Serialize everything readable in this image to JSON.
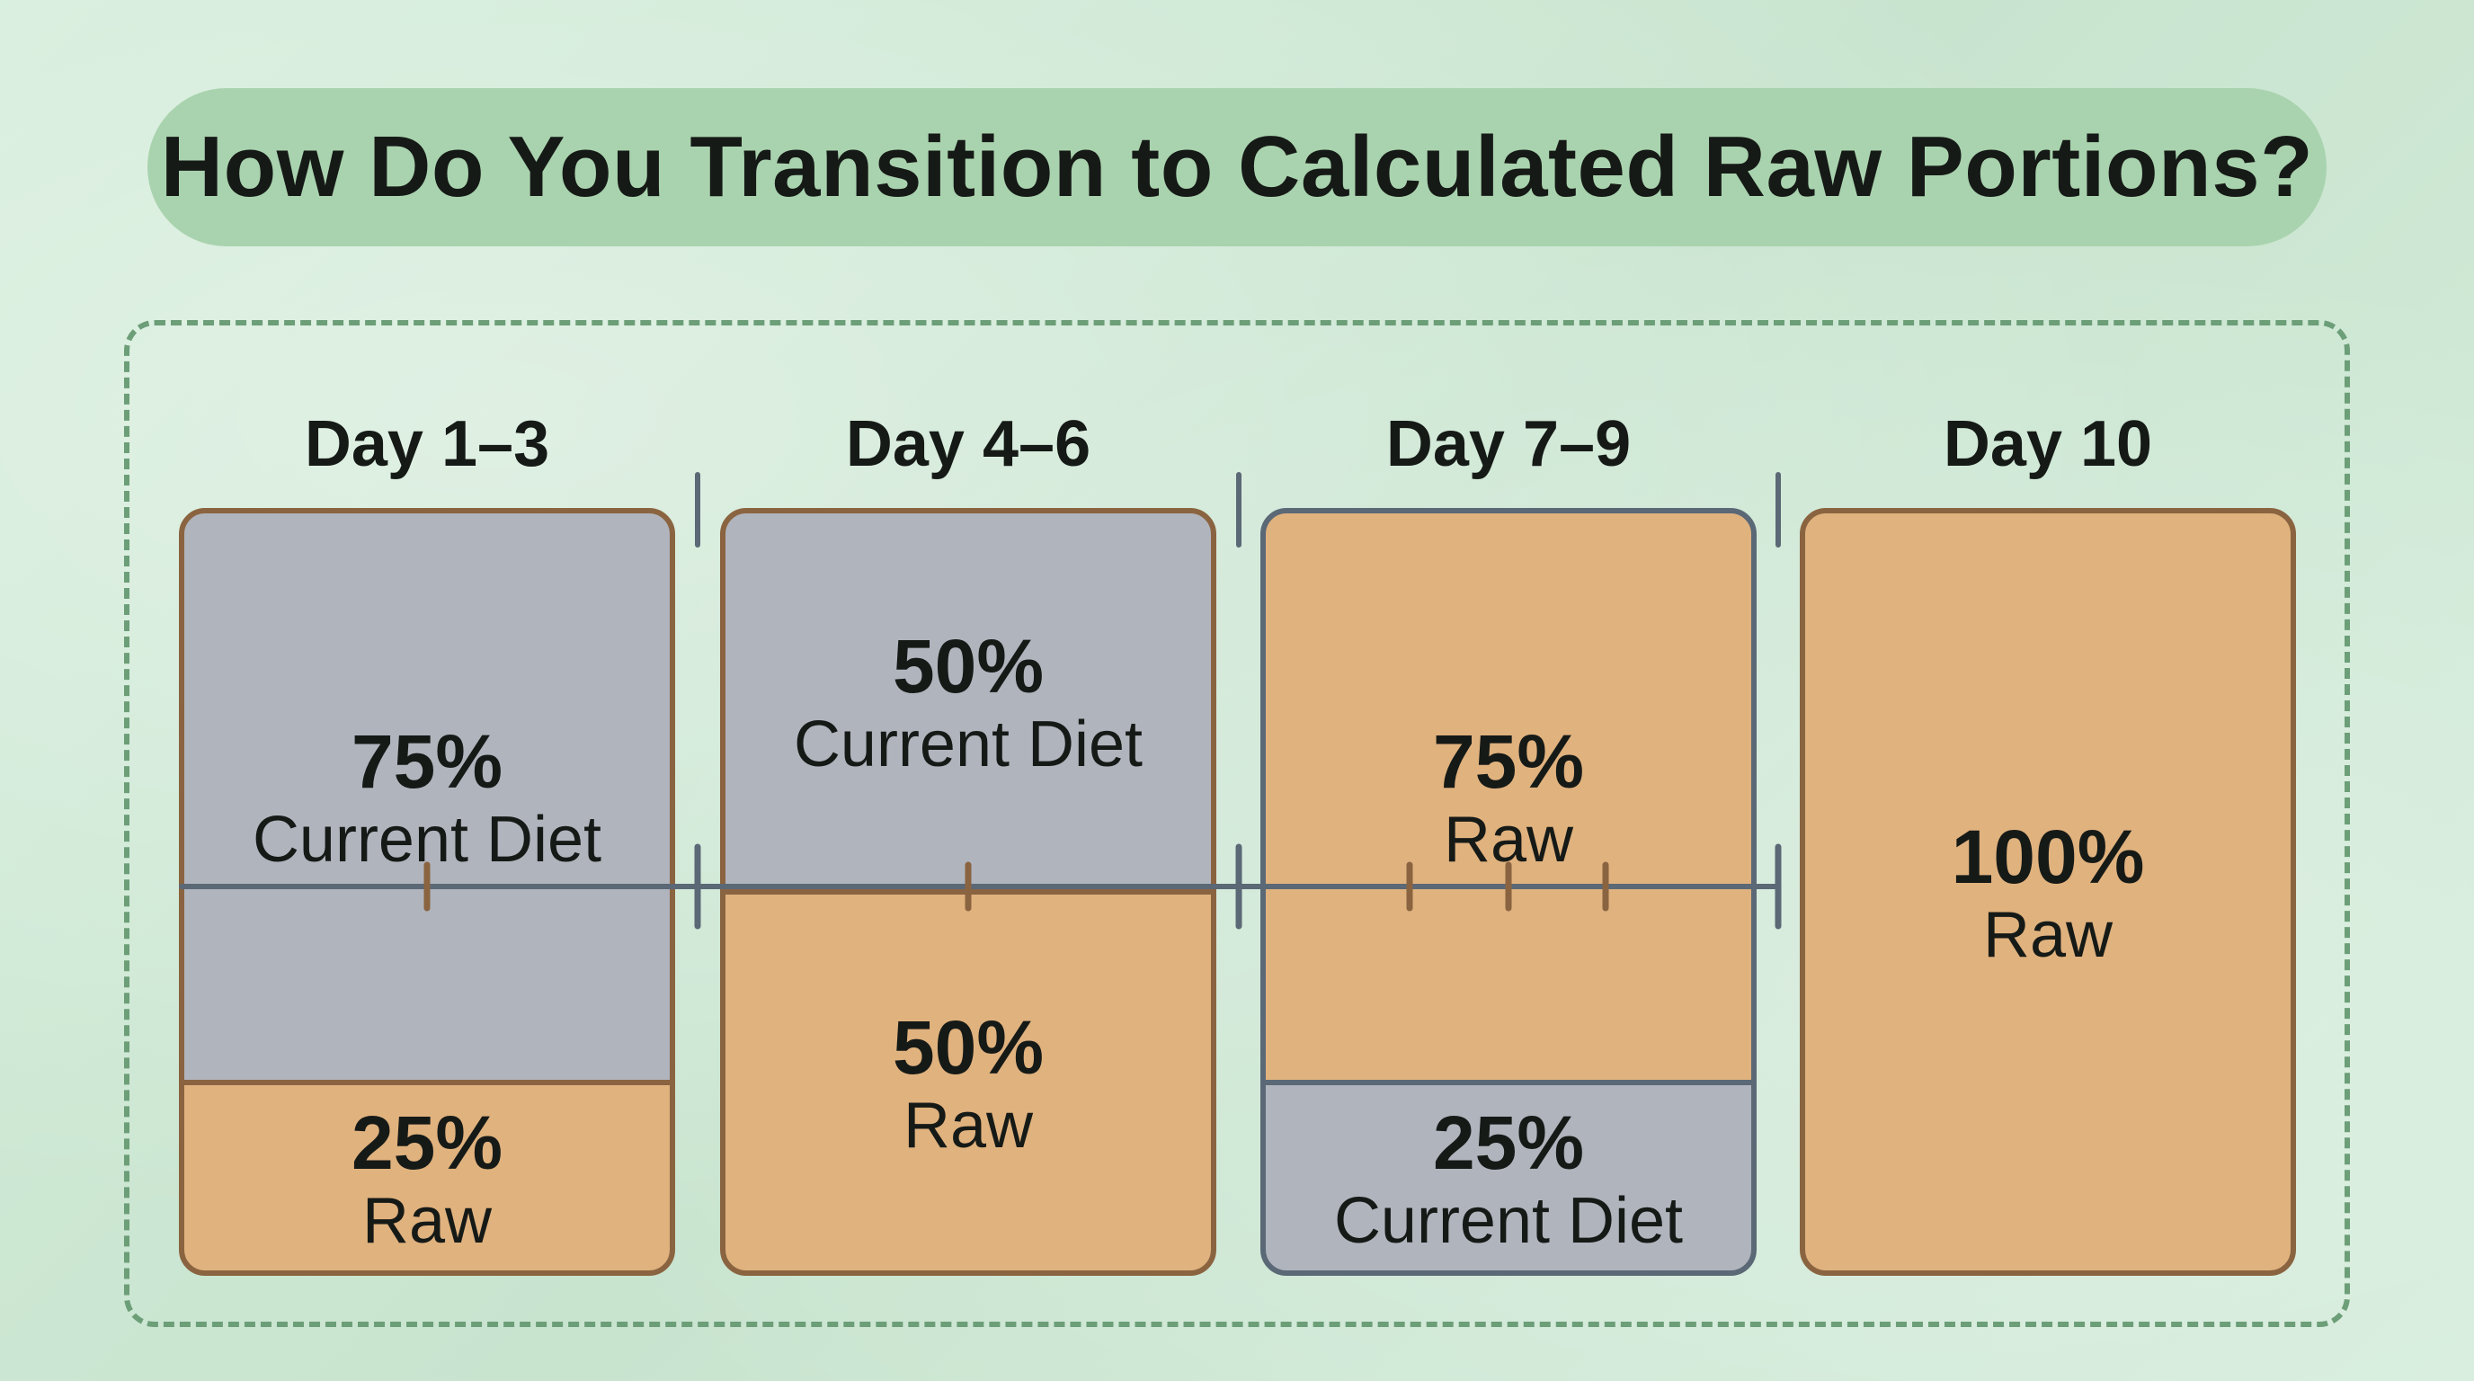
{
  "title": "How Do You Transition to Calculated Raw Portions?",
  "colors": {
    "current": "#b0b4bd",
    "current_stroke": "#5b6876",
    "raw": "#e0b27e",
    "raw_stroke": "#8a6440",
    "title_bg": "#a9d3ae",
    "frame": "#6c9e78"
  },
  "chart_data": {
    "type": "bar",
    "stacked": true,
    "categories": [
      "Day 1–3",
      "Day 4–6",
      "Day 7–9",
      "Day 10"
    ],
    "series": [
      {
        "name": "Current Diet",
        "values": [
          75,
          50,
          25,
          0
        ],
        "pct_labels": [
          "75%",
          "50%",
          "25%",
          ""
        ]
      },
      {
        "name": "Raw",
        "values": [
          25,
          50,
          75,
          100
        ],
        "pct_labels": [
          "25%",
          "50%",
          "75%",
          "100%"
        ]
      }
    ],
    "unit": "%",
    "ylim": [
      0,
      100
    ],
    "stack_order": [
      [
        "Current Diet",
        "Raw"
      ],
      [
        "Current Diet",
        "Raw"
      ],
      [
        "Raw",
        "Current Diet"
      ],
      [
        "Raw",
        "Current Diet"
      ]
    ]
  }
}
